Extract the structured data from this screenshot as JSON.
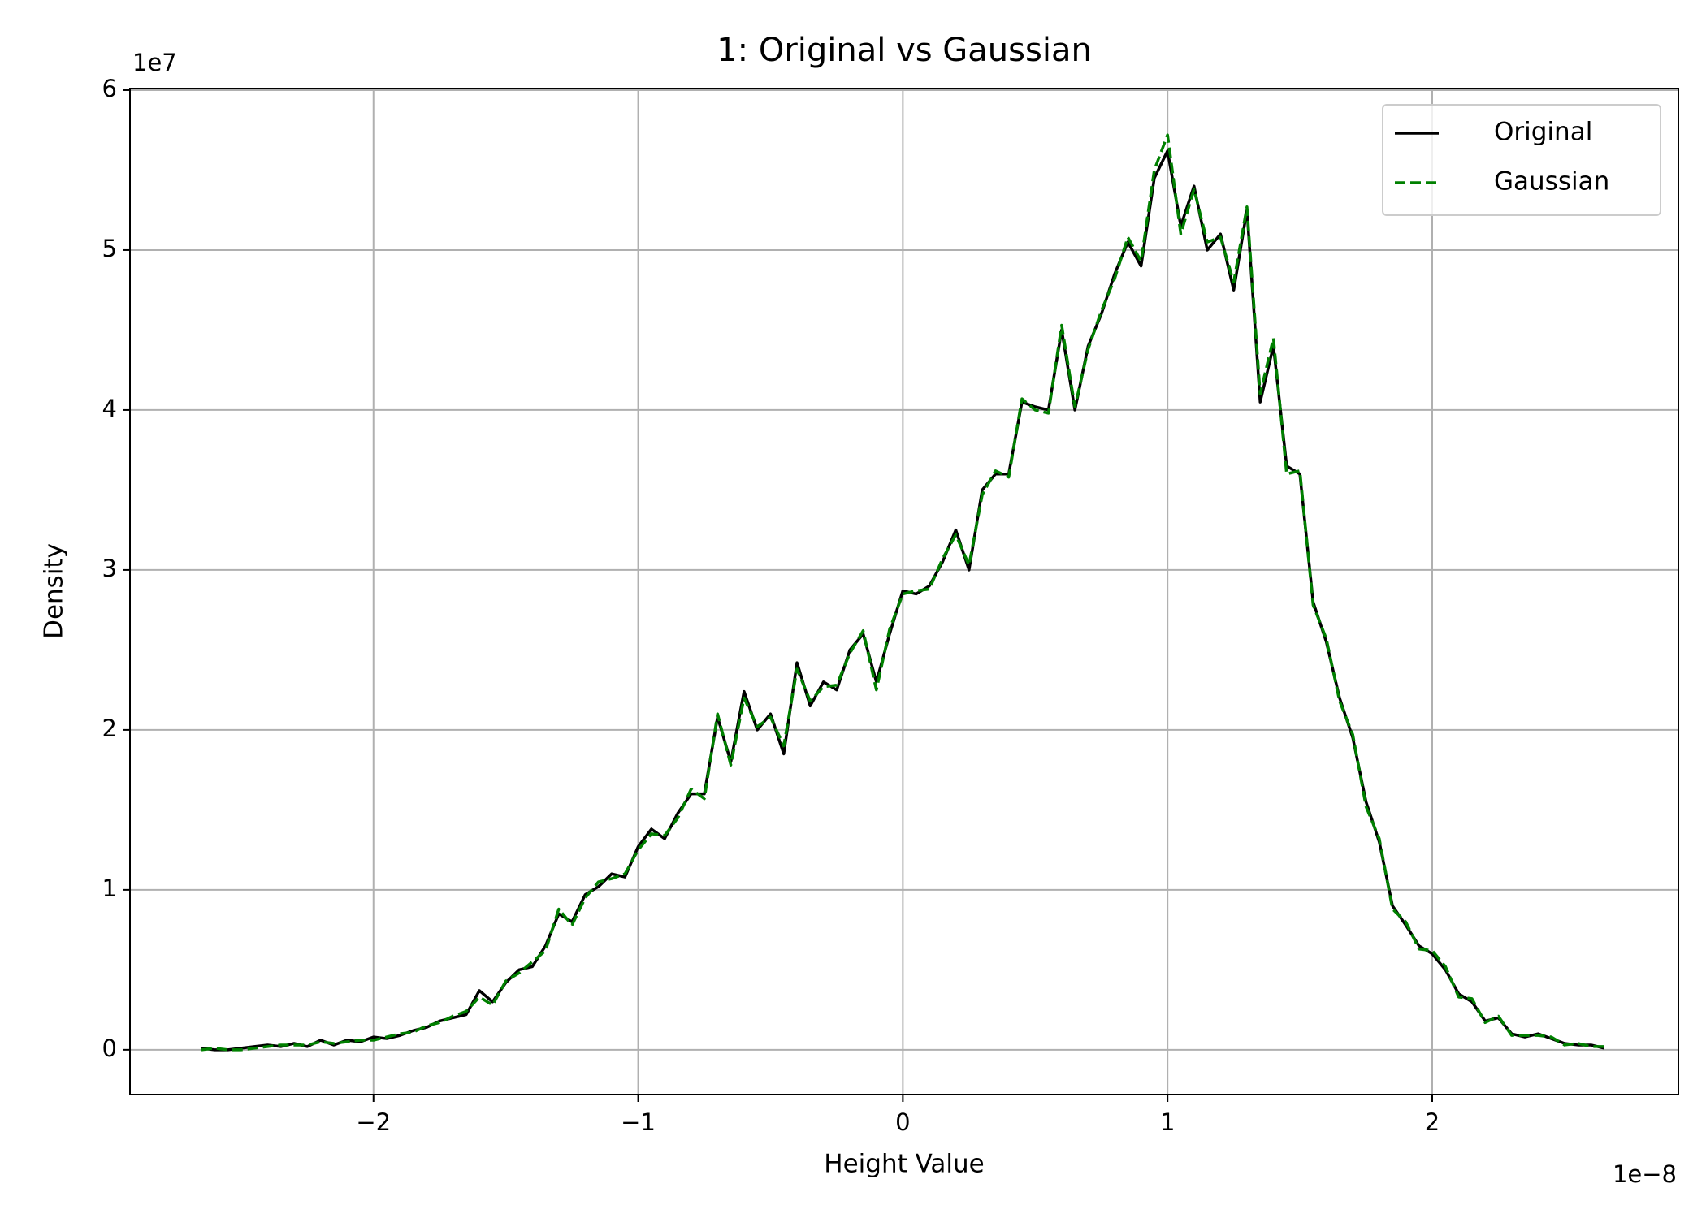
{
  "chart_data": {
    "type": "line",
    "title": "1: Original vs Gaussian",
    "xlabel": "Height Value",
    "ylabel": "Density",
    "x_offset_label": "1e−8",
    "y_offset_label": "1e7",
    "x": [
      -2.65,
      -2.6,
      -2.55,
      -2.5,
      -2.45,
      -2.4,
      -2.35,
      -2.3,
      -2.25,
      -2.2,
      -2.15,
      -2.1,
      -2.05,
      -2.0,
      -1.95,
      -1.9,
      -1.85,
      -1.8,
      -1.75,
      -1.7,
      -1.65,
      -1.6,
      -1.55,
      -1.5,
      -1.45,
      -1.4,
      -1.35,
      -1.3,
      -1.25,
      -1.2,
      -1.15,
      -1.1,
      -1.05,
      -1.0,
      -0.95,
      -0.9,
      -0.85,
      -0.8,
      -0.75,
      -0.7,
      -0.65,
      -0.6,
      -0.55,
      -0.5,
      -0.45,
      -0.4,
      -0.35,
      -0.3,
      -0.25,
      -0.2,
      -0.15,
      -0.1,
      -0.05,
      0.0,
      0.05,
      0.1,
      0.15,
      0.2,
      0.25,
      0.3,
      0.35,
      0.4,
      0.45,
      0.5,
      0.55,
      0.6,
      0.65,
      0.7,
      0.75,
      0.8,
      0.85,
      0.9,
      0.95,
      1.0,
      1.05,
      1.1,
      1.15,
      1.2,
      1.25,
      1.3,
      1.35,
      1.4,
      1.45,
      1.5,
      1.55,
      1.6,
      1.65,
      1.7,
      1.75,
      1.8,
      1.85,
      1.9,
      1.95,
      2.0,
      2.05,
      2.1,
      2.15,
      2.2,
      2.25,
      2.3,
      2.35,
      2.4,
      2.45,
      2.5,
      2.55,
      2.6,
      2.65
    ],
    "series": [
      {
        "name": "Original",
        "color": "#000000",
        "linestyle": "solid",
        "values": [
          0.01,
          0.0,
          0.0,
          0.01,
          0.02,
          0.03,
          0.02,
          0.04,
          0.02,
          0.06,
          0.03,
          0.06,
          0.05,
          0.08,
          0.07,
          0.09,
          0.12,
          0.14,
          0.18,
          0.2,
          0.22,
          0.37,
          0.3,
          0.42,
          0.5,
          0.52,
          0.65,
          0.85,
          0.8,
          0.97,
          1.02,
          1.1,
          1.08,
          1.27,
          1.38,
          1.32,
          1.48,
          1.6,
          1.6,
          2.08,
          1.8,
          2.24,
          2.0,
          2.1,
          1.85,
          2.42,
          2.15,
          2.3,
          2.25,
          2.5,
          2.6,
          2.3,
          2.6,
          2.87,
          2.85,
          2.9,
          3.05,
          3.25,
          3.0,
          3.5,
          3.6,
          3.6,
          4.05,
          4.02,
          4.0,
          4.5,
          4.0,
          4.4,
          4.6,
          4.85,
          5.05,
          4.9,
          5.45,
          5.62,
          5.15,
          5.4,
          5.0,
          5.1,
          4.75,
          5.25,
          4.05,
          4.4,
          3.65,
          3.6,
          2.8,
          2.55,
          2.2,
          1.95,
          1.55,
          1.3,
          0.9,
          0.78,
          0.65,
          0.6,
          0.5,
          0.35,
          0.3,
          0.18,
          0.2,
          0.1,
          0.08,
          0.1,
          0.07,
          0.04,
          0.03,
          0.03,
          0.01
        ]
      },
      {
        "name": "Gaussian",
        "color": "#008000",
        "linestyle": "dashed",
        "values": [
          0.0,
          0.01,
          0.0,
          0.0,
          0.01,
          0.02,
          0.03,
          0.03,
          0.03,
          0.05,
          0.04,
          0.05,
          0.06,
          0.06,
          0.08,
          0.1,
          0.11,
          0.15,
          0.17,
          0.21,
          0.24,
          0.33,
          0.28,
          0.43,
          0.48,
          0.55,
          0.62,
          0.88,
          0.78,
          0.95,
          1.05,
          1.07,
          1.1,
          1.25,
          1.35,
          1.34,
          1.45,
          1.63,
          1.57,
          2.1,
          1.78,
          2.2,
          2.02,
          2.08,
          1.9,
          2.38,
          2.18,
          2.27,
          2.28,
          2.48,
          2.62,
          2.25,
          2.63,
          2.85,
          2.87,
          2.88,
          3.07,
          3.22,
          3.03,
          3.47,
          3.62,
          3.58,
          4.07,
          4.0,
          3.98,
          4.53,
          4.02,
          4.38,
          4.62,
          4.82,
          5.08,
          4.93,
          5.5,
          5.72,
          5.1,
          5.38,
          5.05,
          5.08,
          4.8,
          5.27,
          4.1,
          4.45,
          3.6,
          3.62,
          2.78,
          2.57,
          2.18,
          1.97,
          1.52,
          1.32,
          0.88,
          0.8,
          0.63,
          0.62,
          0.52,
          0.33,
          0.32,
          0.17,
          0.21,
          0.09,
          0.09,
          0.09,
          0.08,
          0.03,
          0.04,
          0.02,
          0.02
        ]
      }
    ],
    "xlim": [
      -2.92,
      2.93
    ],
    "ylim": [
      -0.28,
      6.01
    ],
    "xticks": [
      {
        "value": -2,
        "label": "−2"
      },
      {
        "value": -1,
        "label": "−1"
      },
      0,
      1,
      2
    ],
    "yticks": [
      0,
      1,
      2,
      3,
      4,
      5,
      6
    ],
    "grid": true,
    "legend": "upper right"
  }
}
